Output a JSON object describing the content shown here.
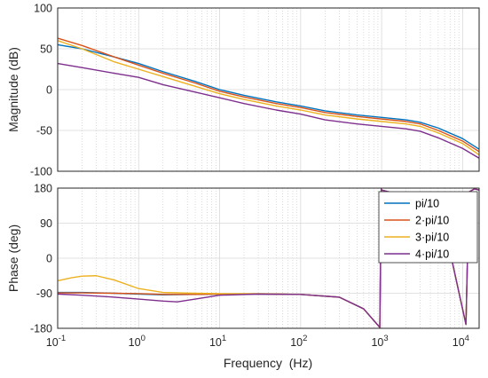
{
  "chart_data": [
    {
      "type": "line",
      "panel": "magnitude",
      "ylabel": "Magnitude (dB)",
      "xscale": "log",
      "xlim": [
        0.1,
        16000
      ],
      "ylim": [
        -100,
        100
      ],
      "yticks": [
        100,
        50,
        0,
        -50,
        -100
      ],
      "ytick_labels": [
        "100",
        "50",
        "0",
        "-50",
        "-100"
      ],
      "grid": true,
      "series": [
        {
          "name": "pi/10",
          "color": "#0072BD",
          "x": [
            0.1,
            0.2,
            0.5,
            1,
            2,
            5,
            10,
            20,
            50,
            100,
            200,
            500,
            1000,
            2000,
            3000,
            5000,
            10000,
            16000
          ],
          "y": [
            55,
            50,
            40,
            32,
            22,
            10,
            0,
            -7,
            -15,
            -20,
            -26,
            -31,
            -34,
            -37,
            -40,
            -47,
            -60,
            -73
          ]
        },
        {
          "name": "2·pi/10",
          "color": "#D95319",
          "x": [
            0.1,
            0.2,
            0.5,
            1,
            2,
            5,
            10,
            20,
            50,
            100,
            200,
            500,
            1000,
            2000,
            3000,
            5000,
            10000,
            16000
          ],
          "y": [
            63,
            54,
            40,
            30,
            20,
            8,
            -2,
            -9,
            -17,
            -22,
            -28,
            -33,
            -36,
            -39,
            -42,
            -50,
            -63,
            -76
          ]
        },
        {
          "name": "3·pi/10",
          "color": "#EDB120",
          "x": [
            0.1,
            0.2,
            0.5,
            1,
            2,
            5,
            10,
            20,
            50,
            100,
            200,
            500,
            1000,
            2000,
            3000,
            5000,
            10000,
            16000
          ],
          "y": [
            60,
            50,
            34,
            25,
            16,
            4,
            -5,
            -12,
            -20,
            -25,
            -31,
            -36,
            -39,
            -42,
            -45,
            -53,
            -66,
            -80
          ]
        },
        {
          "name": "4·pi/10",
          "color": "#7E2F8E",
          "x": [
            0.1,
            0.2,
            0.5,
            1,
            2,
            5,
            10,
            20,
            50,
            100,
            200,
            500,
            1000,
            2000,
            3000,
            5000,
            10000,
            16000
          ],
          "y": [
            32,
            27,
            20,
            15,
            6,
            -3,
            -10,
            -17,
            -25,
            -30,
            -37,
            -42,
            -45,
            -48,
            -51,
            -59,
            -72,
            -84
          ]
        }
      ]
    },
    {
      "type": "line",
      "panel": "phase",
      "ylabel": "Phase (deg)",
      "xlabel": "Frequency  (Hz)",
      "xscale": "log",
      "xlim": [
        0.1,
        16000
      ],
      "xticks": [
        0.1,
        1,
        10,
        100,
        1000,
        10000
      ],
      "xtick_labels": [
        {
          "base": "10",
          "exp": "-1"
        },
        {
          "base": "10",
          "exp": "0"
        },
        {
          "base": "10",
          "exp": "1"
        },
        {
          "base": "10",
          "exp": "2"
        },
        {
          "base": "10",
          "exp": "3"
        },
        {
          "base": "10",
          "exp": "4"
        }
      ],
      "ylim": [
        -180,
        180
      ],
      "yticks": [
        180,
        90,
        0,
        -90,
        -180
      ],
      "ytick_labels": [
        "180",
        "90",
        "0",
        "-90",
        "-180"
      ],
      "grid": true,
      "legend_position": "top-right",
      "series": [
        {
          "name": "pi/10",
          "color": "#0072BD",
          "x": [
            0.1,
            0.2,
            0.5,
            1,
            2,
            5,
            10,
            30,
            100,
            300,
            600,
            900,
            950,
            990,
            1000,
            3000,
            6000,
            11000,
            12000,
            14000,
            16000
          ],
          "y": [
            -88,
            -88,
            -90,
            -92,
            -94,
            -93,
            -92,
            -92,
            -93,
            -100,
            -130,
            -172,
            -178,
            178,
            175,
            150,
            80,
            -170,
            170,
            178,
            175
          ]
        },
        {
          "name": "2·pi/10",
          "color": "#D95319",
          "x": [
            0.1,
            0.2,
            0.5,
            1,
            2,
            5,
            10,
            30,
            100,
            300,
            600,
            900,
            950,
            990,
            1000,
            3000,
            6000,
            11000,
            12000,
            14000,
            16000
          ],
          "y": [
            -89,
            -89,
            -90,
            -91,
            -93,
            -93,
            -92,
            -92,
            -93,
            -100,
            -130,
            -172,
            -178,
            178,
            175,
            150,
            80,
            -170,
            170,
            178,
            175
          ]
        },
        {
          "name": "3·pi/10",
          "color": "#EDB120",
          "x": [
            0.1,
            0.15,
            0.2,
            0.3,
            0.5,
            1,
            2,
            5,
            10,
            30,
            100,
            300,
            600,
            900,
            950,
            990,
            1000,
            3000,
            6000,
            11000,
            12000,
            14000,
            16000
          ],
          "y": [
            -58,
            -50,
            -46,
            -45,
            -56,
            -78,
            -88,
            -90,
            -91,
            -91,
            -93,
            -100,
            -130,
            -172,
            -178,
            178,
            175,
            150,
            80,
            -170,
            170,
            178,
            175
          ]
        },
        {
          "name": "4·pi/10",
          "color": "#7E2F8E",
          "x": [
            0.1,
            0.2,
            0.5,
            1,
            2,
            3,
            5,
            10,
            30,
            100,
            300,
            600,
            900,
            950,
            990,
            1000,
            3000,
            6000,
            11000,
            12000,
            14000,
            16000
          ],
          "y": [
            -92,
            -95,
            -100,
            -105,
            -110,
            -112,
            -105,
            -95,
            -92,
            -93,
            -100,
            -130,
            -172,
            -178,
            178,
            175,
            150,
            80,
            -170,
            170,
            178,
            175
          ]
        }
      ]
    }
  ]
}
